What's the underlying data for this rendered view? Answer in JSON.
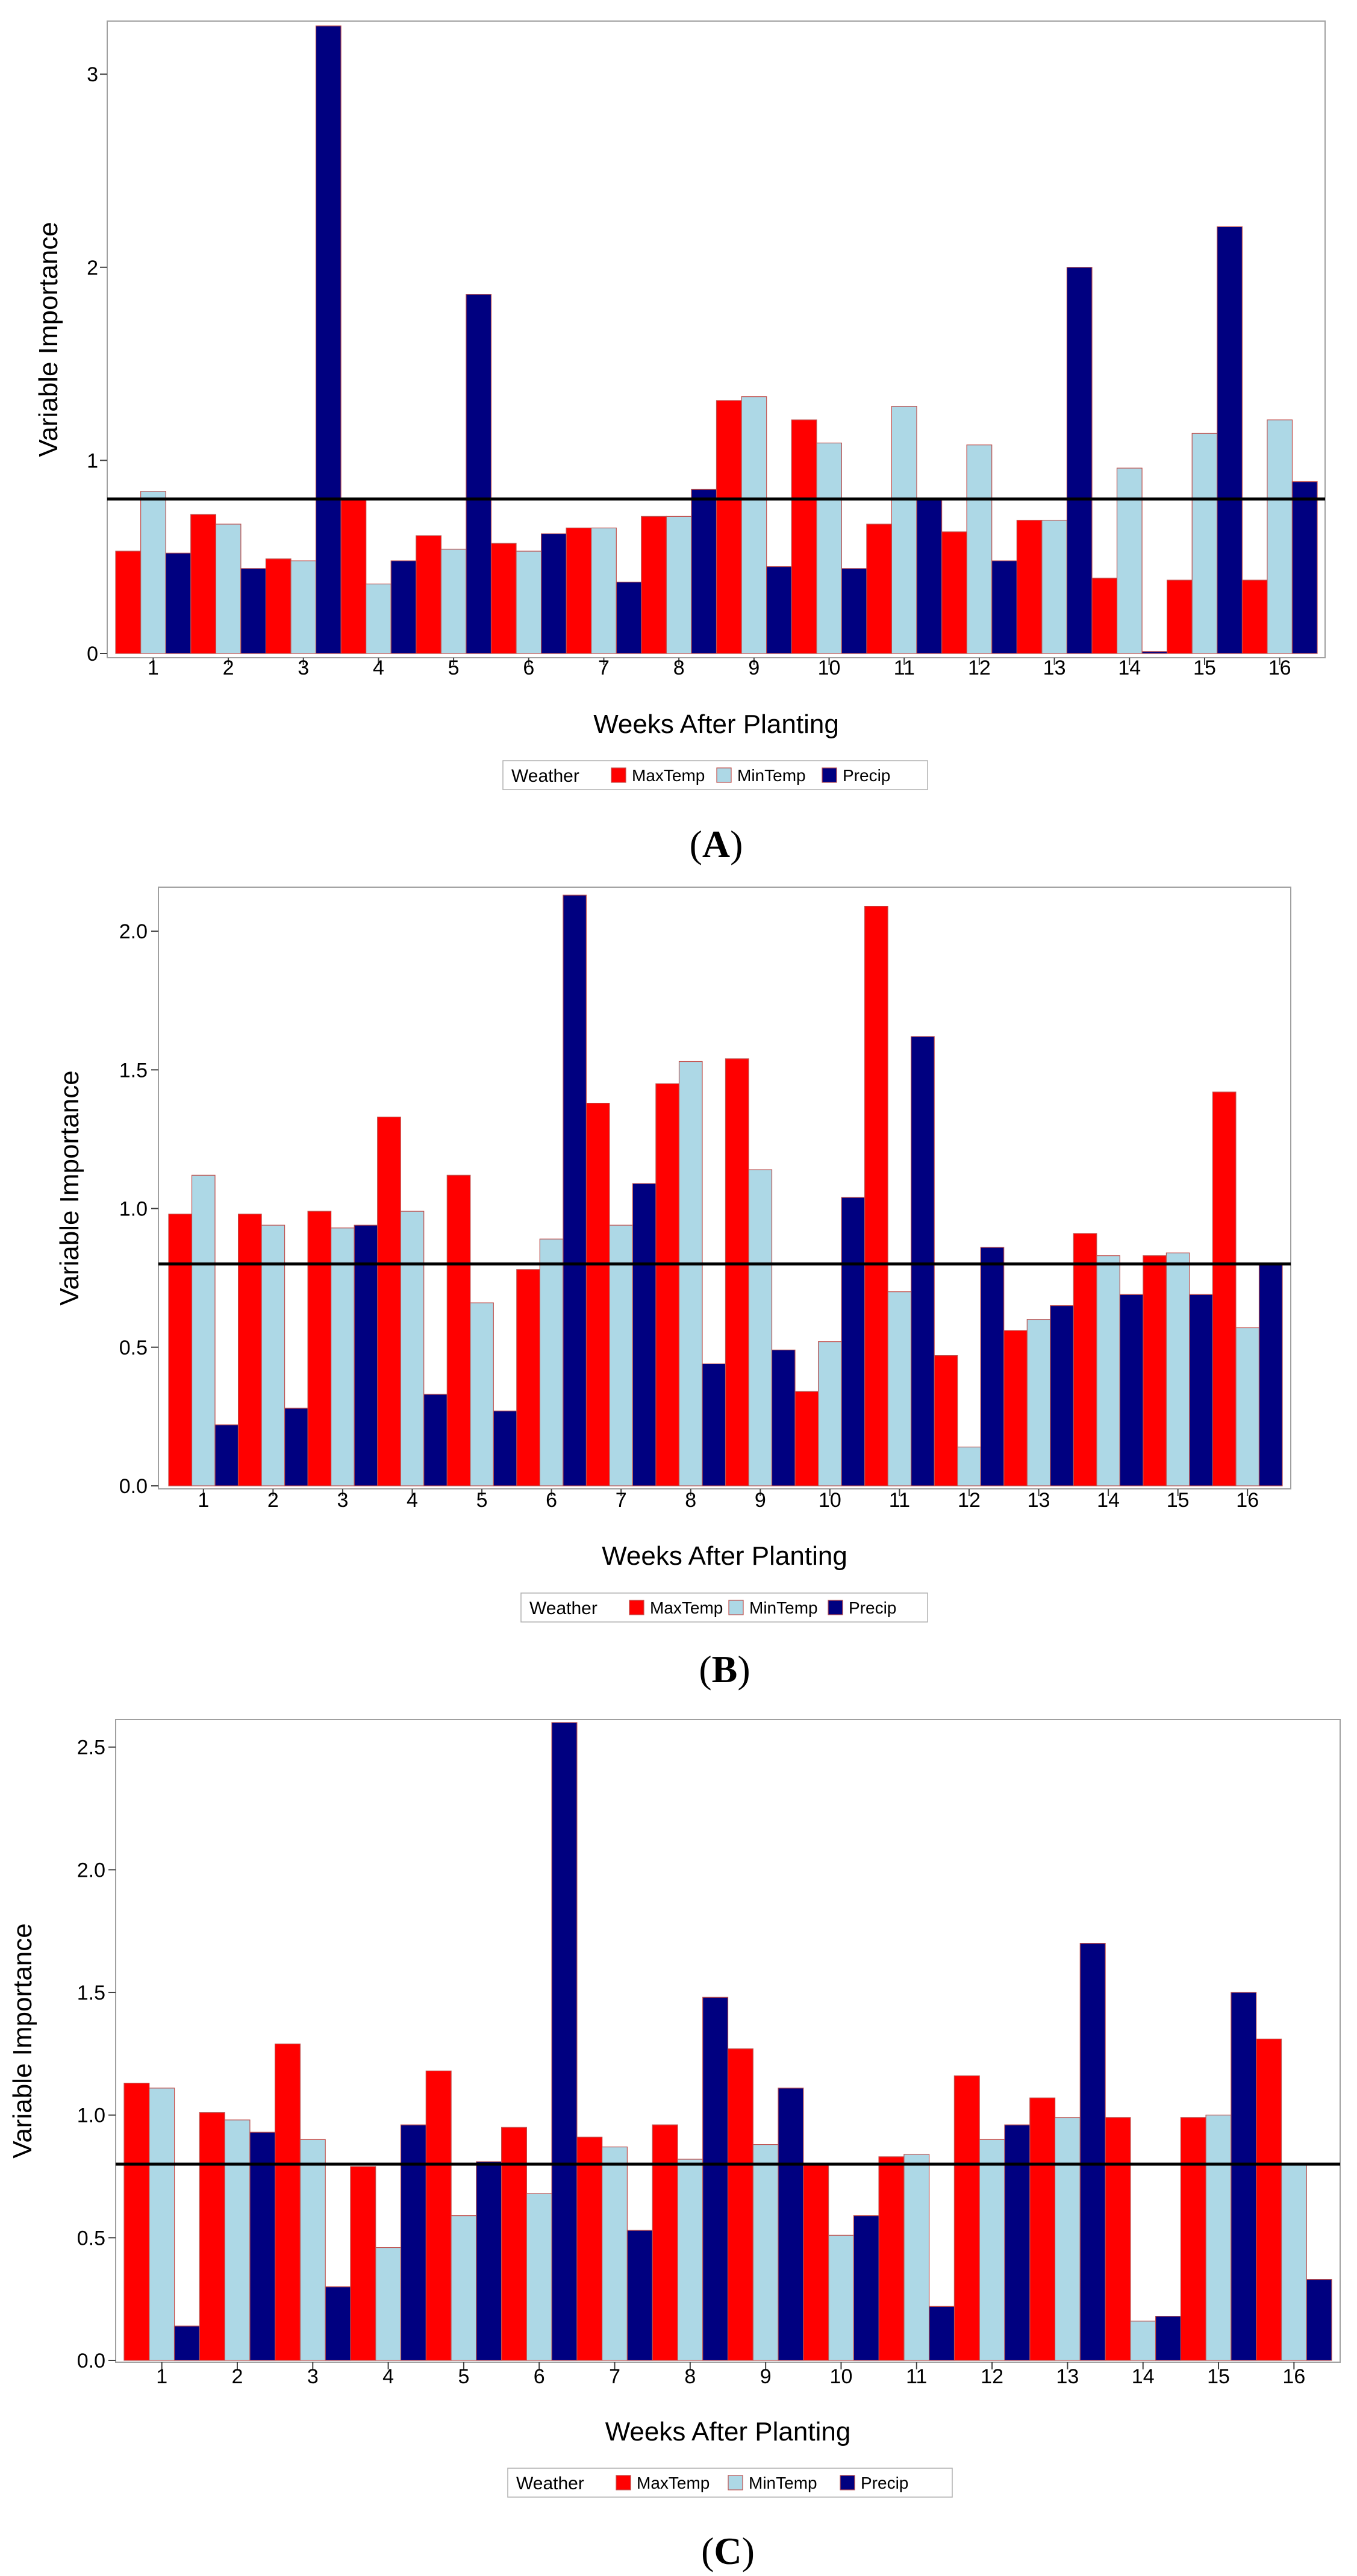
{
  "colors": {
    "MaxTemp": "#ff0000",
    "MinTemp": "#add8e6",
    "Precip": "#000080",
    "bar_outline": "#c0504d",
    "reference_line": "#000000",
    "frame": "#a0a0a0"
  },
  "chart_data": [
    {
      "type": "bar",
      "panel": "(A)",
      "panel_letter": "A",
      "xlabel": "Weeks After Planting",
      "ylabel": "Variable Importance",
      "ylim": [
        0,
        3.25
      ],
      "yticks": [
        0,
        1,
        2,
        3
      ],
      "ytick_labels": [
        "0",
        "1",
        "2",
        "3"
      ],
      "reference_line": 0.8,
      "categories": [
        "1",
        "2",
        "3",
        "4",
        "5",
        "6",
        "7",
        "8",
        "9",
        "10",
        "11",
        "12",
        "13",
        "14",
        "15",
        "16"
      ],
      "legend_title": "Weather",
      "series": [
        {
          "name": "MaxTemp",
          "values": [
            0.53,
            0.72,
            0.49,
            0.8,
            0.61,
            0.57,
            0.65,
            0.71,
            1.31,
            1.21,
            0.67,
            0.63,
            0.69,
            0.39,
            0.38,
            0.38
          ]
        },
        {
          "name": "MinTemp",
          "values": [
            0.84,
            0.67,
            0.48,
            0.36,
            0.54,
            0.53,
            0.65,
            0.71,
            1.33,
            1.09,
            1.28,
            1.08,
            0.69,
            0.96,
            1.14,
            1.21
          ]
        },
        {
          "name": "Precip",
          "values": [
            0.52,
            0.44,
            3.25,
            0.48,
            1.86,
            0.62,
            0.37,
            0.85,
            0.45,
            0.44,
            0.8,
            0.48,
            2.0,
            0.01,
            2.21,
            0.89
          ]
        }
      ]
    },
    {
      "type": "bar",
      "panel": "(B)",
      "panel_letter": "B",
      "xlabel": "Weeks After Planting",
      "ylabel": "Variable Importance",
      "ylim": [
        0,
        2.15
      ],
      "yticks": [
        0,
        0.5,
        1.0,
        1.5,
        2.0
      ],
      "ytick_labels": [
        "0.0",
        "0.5",
        "1.0",
        "1.5",
        "2.0"
      ],
      "reference_line": 0.8,
      "categories": [
        "1",
        "2",
        "3",
        "4",
        "5",
        "6",
        "7",
        "8",
        "9",
        "10",
        "11",
        "12",
        "13",
        "14",
        "15",
        "16"
      ],
      "legend_title": "Weather",
      "series": [
        {
          "name": "MaxTemp",
          "values": [
            0.98,
            0.98,
            0.99,
            1.33,
            1.12,
            0.78,
            1.38,
            1.45,
            1.54,
            0.34,
            2.09,
            0.47,
            0.56,
            0.91,
            0.83,
            1.42
          ]
        },
        {
          "name": "MinTemp",
          "values": [
            1.12,
            0.94,
            0.93,
            0.99,
            0.66,
            0.89,
            0.94,
            1.53,
            1.14,
            0.52,
            0.7,
            0.14,
            0.6,
            0.83,
            0.84,
            0.57
          ]
        },
        {
          "name": "Precip",
          "values": [
            0.22,
            0.28,
            0.94,
            0.33,
            0.27,
            2.13,
            1.09,
            0.44,
            0.49,
            1.04,
            1.62,
            0.86,
            0.65,
            0.69,
            0.69,
            0.8
          ]
        }
      ]
    },
    {
      "type": "bar",
      "panel": "(C)",
      "panel_letter": "C",
      "xlabel": "Weeks After Planting",
      "ylabel": "Variable Importance",
      "ylim": [
        0,
        2.6
      ],
      "yticks": [
        0,
        0.5,
        1.0,
        1.5,
        2.0,
        2.5
      ],
      "ytick_labels": [
        "0.0",
        "0.5",
        "1.0",
        "1.5",
        "2.0",
        "2.5"
      ],
      "reference_line": 0.8,
      "categories": [
        "1",
        "2",
        "3",
        "4",
        "5",
        "6",
        "7",
        "8",
        "9",
        "10",
        "11",
        "12",
        "13",
        "14",
        "15",
        "16"
      ],
      "legend_title": "Weather",
      "series": [
        {
          "name": "MaxTemp",
          "values": [
            1.13,
            1.01,
            1.29,
            0.79,
            1.18,
            0.95,
            0.91,
            0.96,
            1.27,
            0.8,
            0.83,
            1.16,
            1.07,
            0.99,
            0.99,
            1.31
          ]
        },
        {
          "name": "MinTemp",
          "values": [
            1.11,
            0.98,
            0.9,
            0.46,
            0.59,
            0.68,
            0.87,
            0.82,
            0.88,
            0.51,
            0.84,
            0.9,
            0.99,
            0.16,
            1.0,
            0.8
          ]
        },
        {
          "name": "Precip",
          "values": [
            0.14,
            0.93,
            0.3,
            0.96,
            0.81,
            2.6,
            0.53,
            1.48,
            1.11,
            0.59,
            0.22,
            0.96,
            1.7,
            0.18,
            1.5,
            0.33
          ]
        }
      ]
    }
  ]
}
